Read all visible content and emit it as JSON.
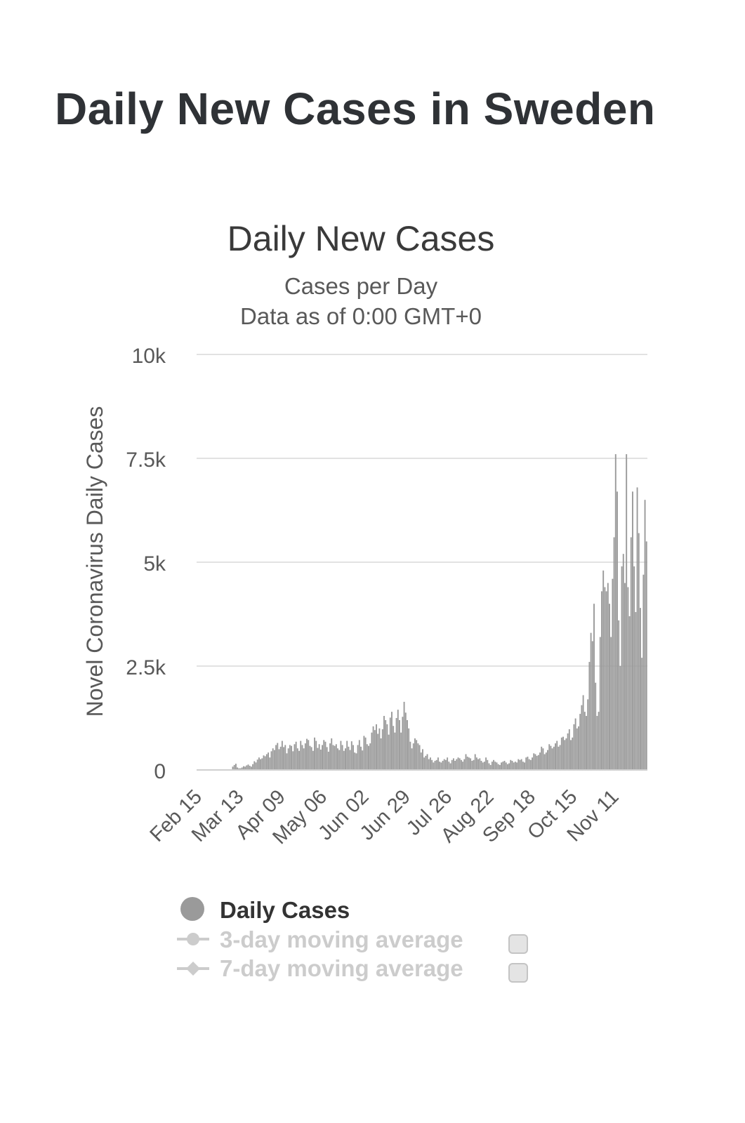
{
  "page": {
    "title": "Daily New Cases in Sweden"
  },
  "colors": {
    "bar": "#9a9a9a",
    "grid": "#e2e2e2",
    "text": "#3a3a3a",
    "muted": "#595959",
    "legend_disabled": "#cccccc"
  },
  "chart_data": {
    "type": "bar",
    "title": "Daily New Cases",
    "subtitle_line1": "Cases per Day",
    "subtitle_line2": "Data as of 0:00 GMT+0",
    "ylabel": "Novel Coronavirus Daily Cases",
    "xlabel": "",
    "ylim": [
      0,
      10000
    ],
    "yticks": [
      {
        "value": 0,
        "label": "0"
      },
      {
        "value": 2500,
        "label": "2.5k"
      },
      {
        "value": 5000,
        "label": "5k"
      },
      {
        "value": 7500,
        "label": "7.5k"
      },
      {
        "value": 10000,
        "label": "10k"
      }
    ],
    "xtick_labels": [
      {
        "index": 0,
        "label": "Feb 15"
      },
      {
        "index": 27,
        "label": "Mar 13"
      },
      {
        "index": 54,
        "label": "Apr 09"
      },
      {
        "index": 81,
        "label": "May 06"
      },
      {
        "index": 108,
        "label": "Jun 02"
      },
      {
        "index": 135,
        "label": "Jun 29"
      },
      {
        "index": 162,
        "label": "Jul 26"
      },
      {
        "index": 189,
        "label": "Aug 22"
      },
      {
        "index": 216,
        "label": "Sep 18"
      },
      {
        "index": 243,
        "label": "Oct 15"
      },
      {
        "index": 270,
        "label": "Nov 11"
      }
    ],
    "series": [
      {
        "name": "Daily Cases",
        "start_date": "Feb 15",
        "values": [
          0,
          0,
          0,
          0,
          0,
          0,
          0,
          0,
          0,
          0,
          0,
          0,
          0,
          0,
          0,
          0,
          0,
          0,
          0,
          0,
          0,
          0,
          0,
          80,
          120,
          150,
          60,
          40,
          40,
          60,
          90,
          80,
          110,
          130,
          100,
          80,
          140,
          210,
          180,
          250,
          300,
          260,
          280,
          350,
          330,
          380,
          420,
          300,
          450,
          520,
          480,
          600,
          650,
          500,
          560,
          700,
          550,
          600,
          400,
          520,
          600,
          580,
          450,
          620,
          680,
          520,
          460,
          700,
          600,
          520,
          640,
          750,
          720,
          580,
          550,
          460,
          780,
          700,
          530,
          620,
          490,
          600,
          720,
          680,
          550,
          440,
          640,
          760,
          600,
          580,
          620,
          520,
          480,
          700,
          600,
          460,
          520,
          700,
          560,
          480,
          690,
          600,
          420,
          400,
          600,
          720,
          560,
          470,
          820,
          780,
          620,
          580,
          640,
          900,
          1050,
          960,
          1100,
          870,
          1000,
          760,
          980,
          1300,
          1200,
          1100,
          850,
          1260,
          1400,
          1060,
          900,
          1250,
          1450,
          1200,
          900,
          1280,
          1640,
          1380,
          1200,
          1000,
          680,
          520,
          640,
          760,
          720,
          640,
          600,
          420,
          500,
          300,
          340,
          380,
          260,
          300,
          240,
          180,
          220,
          240,
          300,
          200,
          180,
          220,
          260,
          240,
          300,
          200,
          160,
          240,
          280,
          220,
          260,
          300,
          280,
          240,
          200,
          260,
          380,
          320,
          300,
          280,
          220,
          240,
          380,
          300,
          260,
          280,
          220,
          180,
          200,
          300,
          240,
          160,
          120,
          200,
          240,
          200,
          180,
          140,
          120,
          180,
          200,
          220,
          180,
          140,
          160,
          240,
          220,
          180,
          200,
          180,
          260,
          240,
          260,
          200,
          180,
          300,
          320,
          260,
          240,
          300,
          400,
          380,
          340,
          360,
          420,
          560,
          520,
          380,
          420,
          480,
          620,
          580,
          520,
          560,
          640,
          700,
          560,
          600,
          780,
          800,
          720,
          760,
          880,
          980,
          720,
          780,
          1100,
          1240,
          1000,
          1050,
          1350,
          1560,
          1800,
          1400,
          1300,
          1700,
          2600,
          3300,
          3100,
          4000,
          2100,
          1300,
          1400,
          3200,
          4300,
          4800,
          4400,
          4300,
          4500,
          4000,
          3200,
          4600,
          5600,
          7600,
          6700,
          3600,
          2500,
          4900,
          5200,
          4500,
          7600,
          4400,
          3700,
          5600,
          6700,
          4900,
          3800,
          6800,
          5700,
          3900,
          2700,
          4700,
          6500,
          5500
        ]
      }
    ]
  },
  "legend": {
    "items": [
      {
        "label": "Daily Cases",
        "active": true
      },
      {
        "label": "3-day moving average",
        "active": false
      },
      {
        "label": "7-day moving average",
        "active": false
      }
    ]
  }
}
